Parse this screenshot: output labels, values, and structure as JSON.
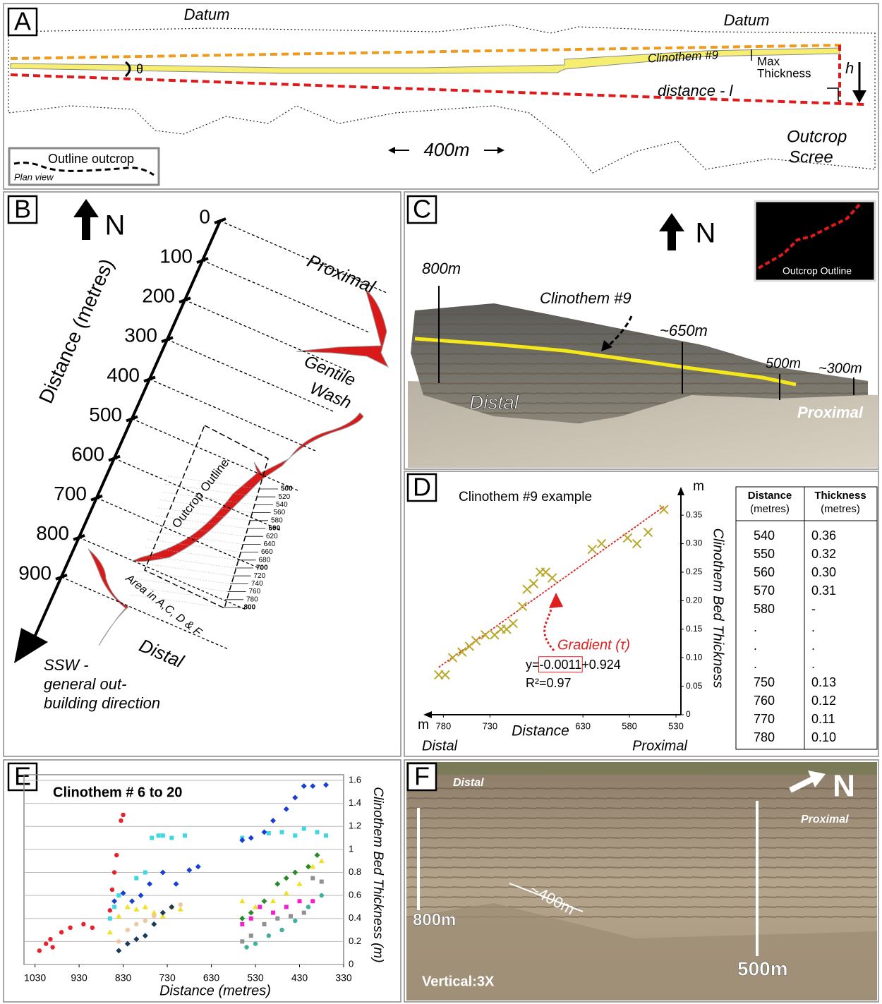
{
  "panel_labels": [
    "A",
    "B",
    "C",
    "D",
    "E",
    "F"
  ],
  "panel_a": {
    "datum_left": "Datum",
    "datum_right": "Datum",
    "angle": "θ",
    "clinothem": "Clinothem #9",
    "max_thickness": [
      "Max",
      "Thickness"
    ],
    "height": "h",
    "distance": "distance - l",
    "scale": "400m",
    "scree": [
      "Outcrop",
      "Scree"
    ],
    "legend": {
      "label": "Outline outcrop",
      "sublabel": "Plan view"
    }
  },
  "panel_b": {
    "north": "N",
    "axis_title": "Distance (metres)",
    "axis_ticks": [
      0,
      100,
      200,
      300,
      400,
      500,
      600,
      700,
      800,
      900
    ],
    "proximal": "Proximal",
    "wash": [
      "Gentile",
      "Wash"
    ],
    "distal": "Distal",
    "outline": "Outcrop Outline",
    "area": "Area in A,C, D & F",
    "inset_ticks": [
      500,
      520,
      540,
      560,
      580,
      600,
      620,
      640,
      660,
      680,
      700,
      720,
      740,
      760,
      780,
      800
    ],
    "direction": [
      "SSW -",
      "general out-",
      "building direction"
    ]
  },
  "panel_c": {
    "north": "N",
    "inset": "Outcrop Outline",
    "markers": [
      "800m",
      "~650m",
      "500m",
      "~300m"
    ],
    "clinothem": "Clinothem #9",
    "distal": "Distal",
    "proximal": "Proximal"
  },
  "panel_d_table": {
    "headers": [
      [
        "Distance",
        "(metres)"
      ],
      [
        "Thickness",
        "(metres)"
      ]
    ],
    "rows": [
      [
        "540",
        "0.36"
      ],
      [
        "550",
        "0.32"
      ],
      [
        "560",
        "0.30"
      ],
      [
        "570",
        "0.31"
      ],
      [
        "580",
        "-"
      ],
      [
        ".",
        "."
      ],
      [
        ".",
        "."
      ],
      [
        ".",
        "."
      ],
      [
        "750",
        "0.13"
      ],
      [
        "760",
        "0.12"
      ],
      [
        "770",
        "0.11"
      ],
      [
        "780",
        "0.10"
      ]
    ]
  },
  "panel_f": {
    "distal": "Distal",
    "proximal": "Proximal",
    "north": "N",
    "marker_left": "800m",
    "marker_right": "500m",
    "scale": "~400m",
    "exaggeration": "Vertical:3X"
  },
  "chart_data": [
    {
      "type": "scatter",
      "title": "Clinothem #9 example",
      "marker": "x",
      "color": "#b8a82a",
      "x": [
        785,
        778,
        770,
        760,
        752,
        745,
        735,
        725,
        718,
        712,
        705,
        695,
        690,
        683,
        676,
        670,
        663,
        620,
        610,
        582,
        572,
        560,
        543
      ],
      "values": [
        0.07,
        0.07,
        0.1,
        0.11,
        0.12,
        0.13,
        0.14,
        0.14,
        0.15,
        0.15,
        0.16,
        0.19,
        0.22,
        0.23,
        0.25,
        0.25,
        0.24,
        0.29,
        0.3,
        0.31,
        0.3,
        0.32,
        0.36
      ],
      "xlim": [
        800,
        530
      ],
      "ylim": [
        0,
        0.37
      ],
      "xticks": [
        780,
        730,
        630,
        580,
        530
      ],
      "yticks": [
        0,
        0.05,
        {
          "value": 0.1,
          "label": "0.10"
        },
        0.15,
        {
          "value": 0.2,
          "label": "0.20"
        },
        0.25,
        {
          "value": 0.3,
          "label": "0.30"
        },
        0.35
      ],
      "x_label": "Distance",
      "y_label": "Clinothem Bed Thickness",
      "x_unit": "m",
      "y_unit": "m",
      "x_ends": [
        "Distal",
        "Proximal"
      ],
      "trendline_color": "#e02020",
      "annotations": {
        "gradient": "Gradient (τ)",
        "equation_prefix": "y=",
        "slope": "-0.0011",
        "equation_suffix": "+0.924",
        "r2": "R²=0.97"
      }
    },
    {
      "type": "scatter",
      "title": "Clinothem # 6 to 20",
      "x_label": "Distance (metres)",
      "y_label": "Clinothem Bed Thickness (m)",
      "xlim": [
        1055,
        330
      ],
      "ylim": [
        0,
        1.6
      ],
      "xticks": [
        1030,
        930,
        830,
        730,
        630,
        530,
        430,
        330
      ],
      "yticks": [
        0,
        0.2,
        0.4,
        0.6,
        0.8,
        1,
        1.2,
        1.4,
        1.6
      ],
      "grid": true,
      "series": [
        {
          "color": "#e8202a",
          "marker": "circle",
          "x": [
            1020,
            1005,
            995,
            990,
            970,
            950,
            920,
            900,
            860,
            855,
            850,
            845,
            835,
            830
          ],
          "values": [
            0.12,
            0.18,
            0.22,
            0.15,
            0.28,
            0.32,
            0.35,
            0.32,
            0.47,
            0.65,
            0.8,
            0.95,
            1.25,
            1.3
          ]
        },
        {
          "color": "#3fd8e0",
          "marker": "square",
          "x": [
            860,
            850,
            840,
            800,
            780,
            765,
            750,
            740,
            720,
            690,
            560,
            500,
            470,
            440,
            420,
            390,
            370
          ],
          "values": [
            0.4,
            0.5,
            0.6,
            0.75,
            0.8,
            1.1,
            1.12,
            1.12,
            1.1,
            1.12,
            1.1,
            1.14,
            1.15,
            1.12,
            1.18,
            1.15,
            1.12
          ]
        },
        {
          "color": "#1a3fd0",
          "marker": "diamond",
          "x": [
            850,
            830,
            810,
            790,
            770,
            740,
            710,
            680,
            660,
            560,
            540,
            510,
            490,
            460,
            440,
            420,
            400,
            370
          ],
          "values": [
            0.55,
            0.62,
            0.55,
            0.6,
            0.7,
            0.8,
            0.7,
            0.82,
            0.85,
            1.08,
            1.1,
            1.15,
            1.25,
            1.35,
            1.45,
            1.55,
            1.55,
            1.56
          ]
        },
        {
          "color": "#f0e020",
          "marker": "triangle",
          "x": [
            860,
            840,
            820,
            800,
            780,
            760,
            740,
            720,
            700,
            560,
            530,
            490,
            460,
            430,
            400,
            380
          ],
          "values": [
            0.28,
            0.42,
            0.5,
            0.48,
            0.5,
            0.45,
            0.42,
            0.5,
            0.48,
            0.55,
            0.5,
            0.55,
            0.62,
            0.7,
            0.85,
            0.9
          ]
        },
        {
          "color": "#f0c8a0",
          "marker": "circle",
          "x": [
            840,
            820,
            800,
            780,
            760,
            740,
            720,
            700
          ],
          "values": [
            0.2,
            0.3,
            0.35,
            0.38,
            0.42,
            0.45,
            0.5,
            0.52
          ]
        },
        {
          "color": "#1a3a5a",
          "marker": "diamond",
          "x": [
            840,
            820,
            800,
            780,
            760,
            740,
            720
          ],
          "values": [
            0.12,
            0.18,
            0.22,
            0.25,
            0.35,
            0.45,
            0.5
          ]
        },
        {
          "color": "#2a8a2a",
          "marker": "diamond",
          "x": [
            560,
            540,
            510,
            480,
            460,
            440,
            410,
            390
          ],
          "values": [
            0.4,
            0.45,
            0.55,
            0.7,
            0.75,
            0.8,
            0.85,
            0.95
          ]
        },
        {
          "color": "#f020d0",
          "marker": "square",
          "x": [
            560,
            540,
            520,
            490,
            460,
            430,
            400
          ],
          "values": [
            0.35,
            0.4,
            0.5,
            0.45,
            0.5,
            0.55,
            0.55
          ]
        },
        {
          "color": "#909090",
          "marker": "square",
          "x": [
            560,
            540,
            510,
            480,
            450,
            420,
            400,
            380
          ],
          "values": [
            0.2,
            0.25,
            0.35,
            0.4,
            0.42,
            0.45,
            0.75,
            0.72
          ]
        },
        {
          "color": "#40b0a0",
          "marker": "circle",
          "x": [
            550,
            530,
            500,
            470,
            440,
            410,
            380
          ],
          "values": [
            0.15,
            0.18,
            0.25,
            0.3,
            0.38,
            0.5,
            0.6
          ]
        }
      ]
    }
  ]
}
